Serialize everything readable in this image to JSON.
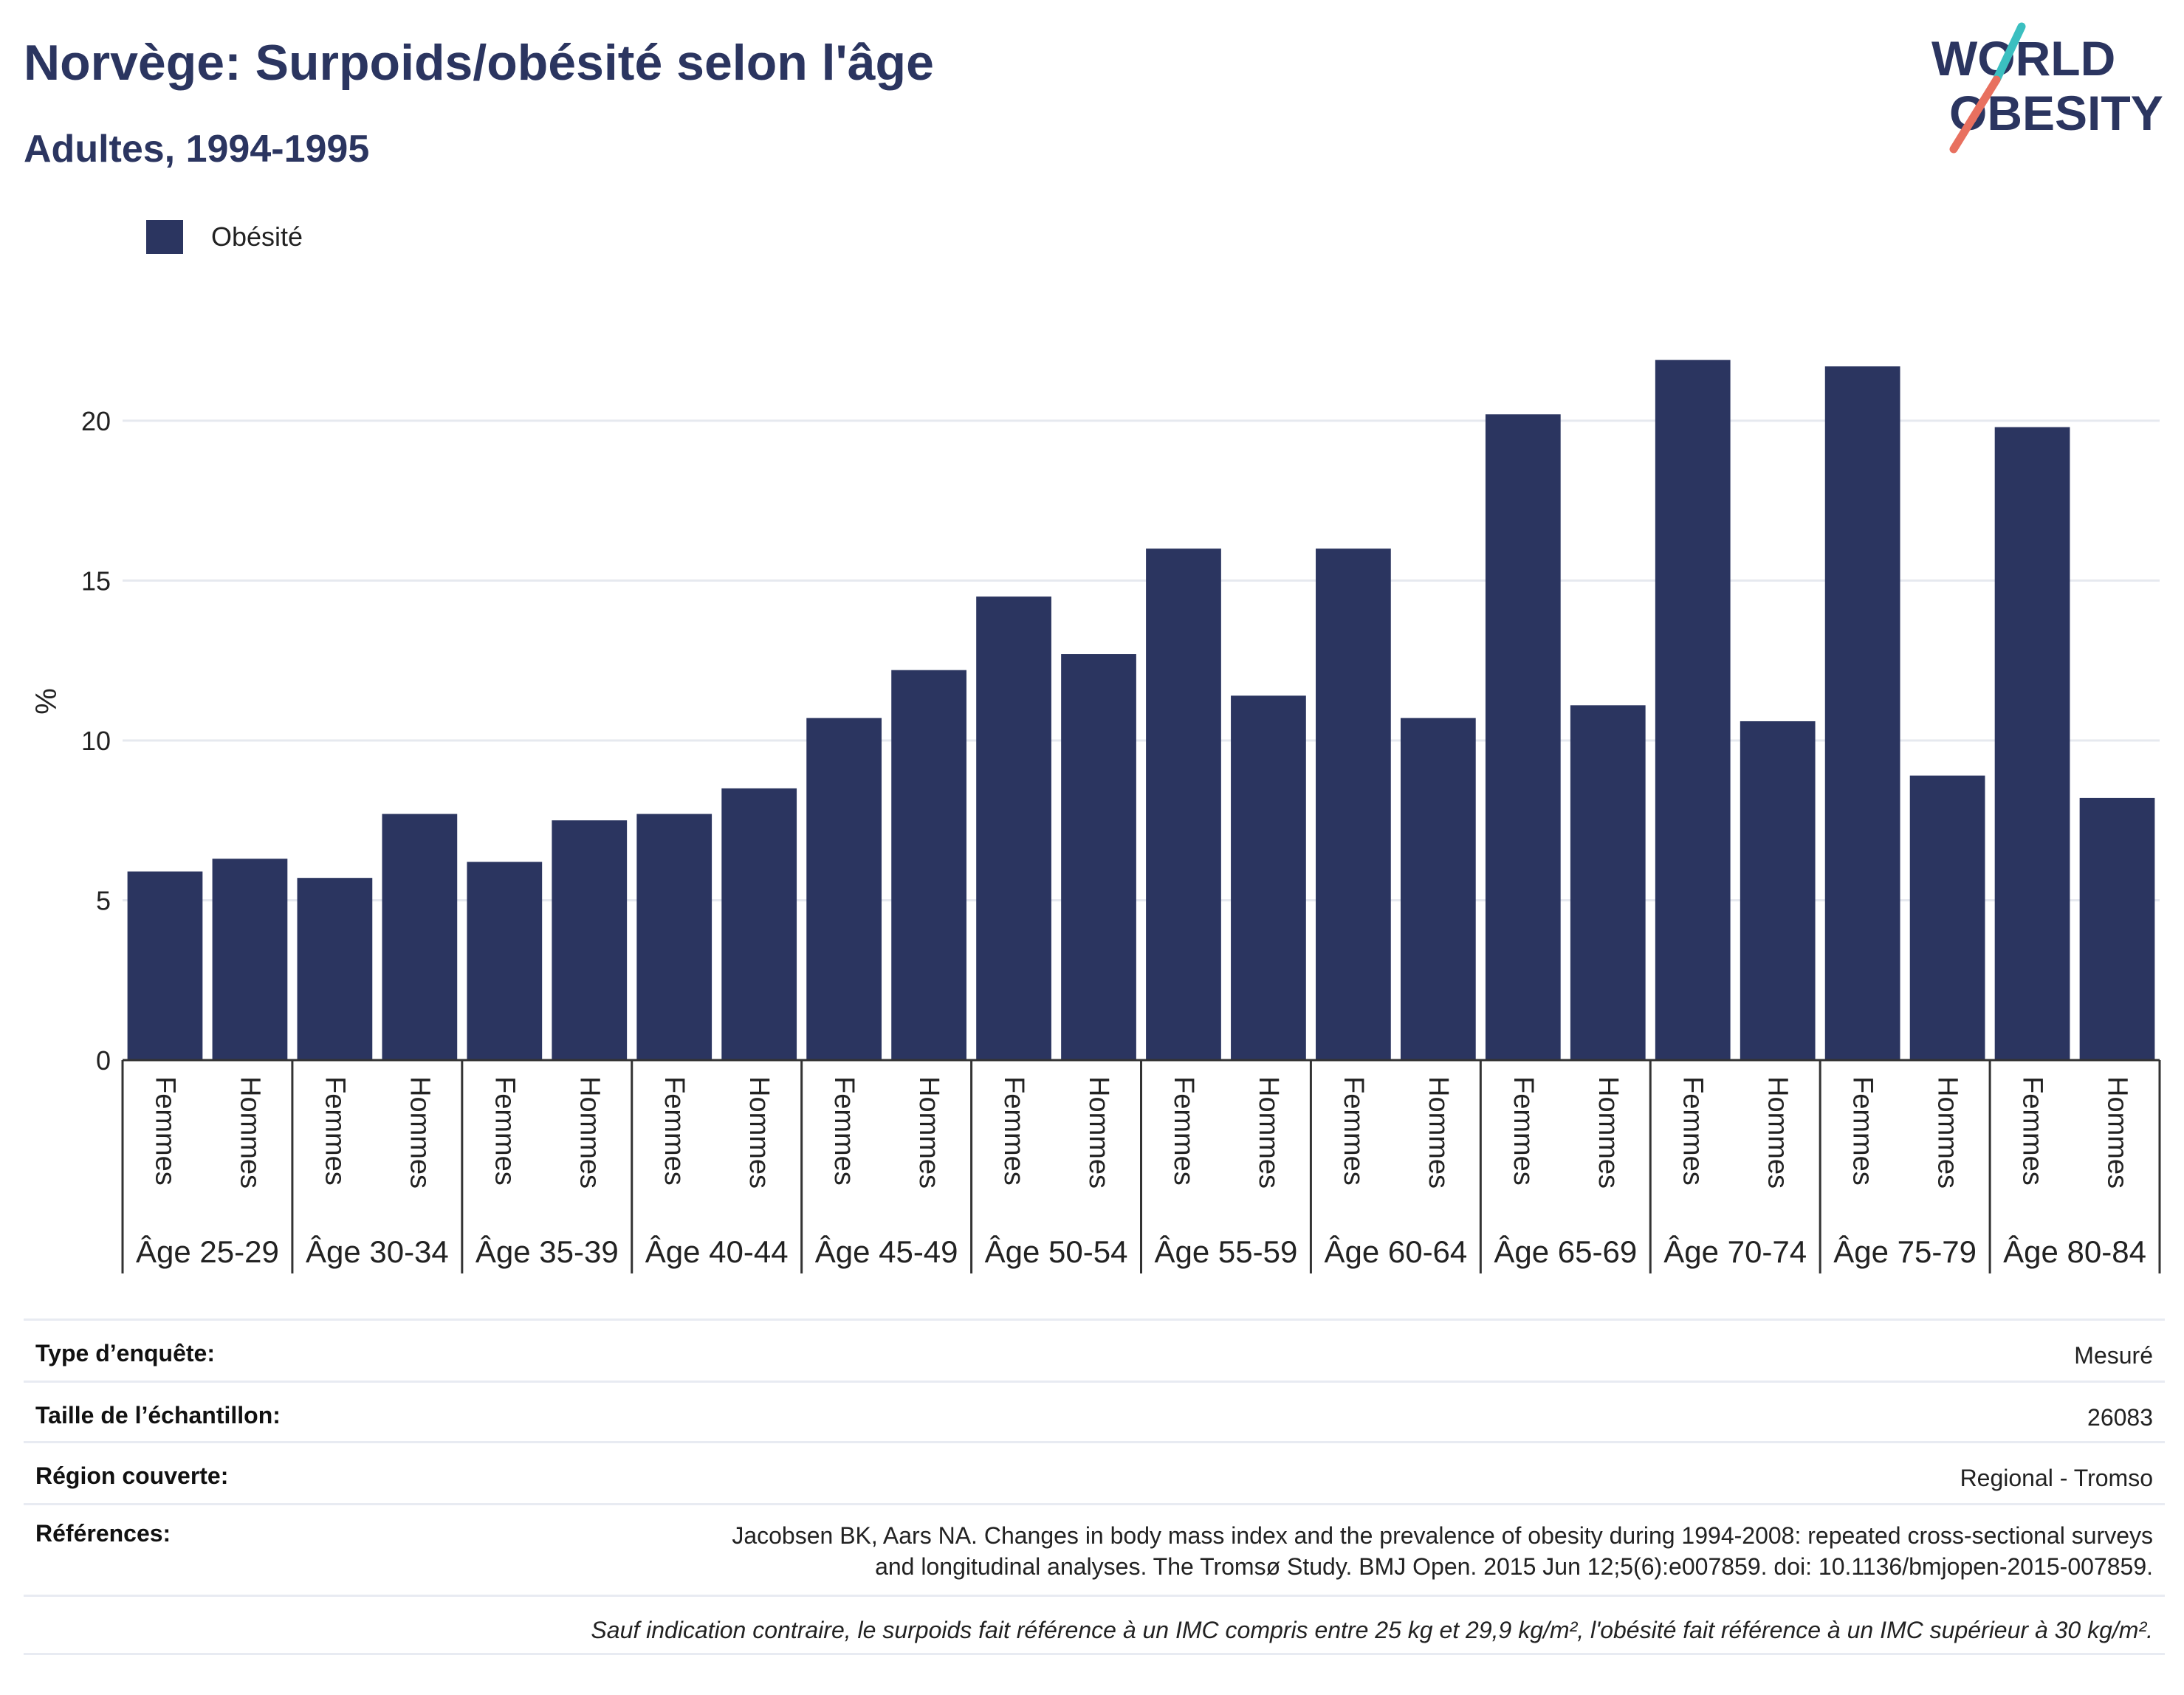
{
  "header": {
    "title": "Norvège: Surpoids/obésité selon l'âge",
    "subtitle": "Adultes, 1994-1995"
  },
  "logo": {
    "line1": "WORLD",
    "line2": "OBESITY"
  },
  "legend": {
    "label": "Obésité",
    "color": "#2b3560"
  },
  "chart_data": {
    "type": "bar",
    "ylabel": "%",
    "ylim": [
      0,
      23
    ],
    "yticks": [
      0,
      5,
      10,
      15,
      20
    ],
    "grid": true,
    "legend_position": "top-left",
    "groups": [
      "Âge 25-29",
      "Âge 30-34",
      "Âge 35-39",
      "Âge 40-44",
      "Âge 45-49",
      "Âge 50-54",
      "Âge 55-59",
      "Âge 60-64",
      "Âge 65-69",
      "Âge 70-74",
      "Âge 75-79",
      "Âge 80-84"
    ],
    "subcategories": [
      "Femmes",
      "Hommes"
    ],
    "series": [
      {
        "name": "Obésité",
        "color": "#2b3560",
        "values": [
          5.9,
          6.3,
          5.7,
          7.7,
          6.2,
          7.5,
          7.7,
          8.5,
          10.7,
          12.2,
          14.5,
          12.7,
          16.0,
          11.4,
          16.0,
          10.7,
          20.2,
          11.1,
          21.9,
          10.6,
          21.7,
          8.9,
          19.8,
          8.2
        ]
      }
    ]
  },
  "meta": {
    "survey_type_label": "Type d’enquête:",
    "survey_type_value": "Mesuré",
    "sample_size_label": "Taille de l’échantillon:",
    "sample_size_value": "26083",
    "region_label": "Région couverte:",
    "region_value": "Regional - Tromso",
    "references_label": "Références:",
    "references_line1": "Jacobsen BK, Aars NA. Changes in body mass index and the prevalence of obesity during 1994-2008: repeated cross-sectional surveys",
    "references_line2": "and longitudinal analyses. The Tromsø Study. BMJ Open. 2015 Jun 12;5(6):e007859. doi: 10.1136/bmjopen-2015-007859.",
    "note": "Sauf indication contraire, le surpoids fait référence à un IMC compris entre 25 kg et 29,9 kg/m², l'obésité fait référence à un IMC supérieur à 30 kg/m²."
  }
}
